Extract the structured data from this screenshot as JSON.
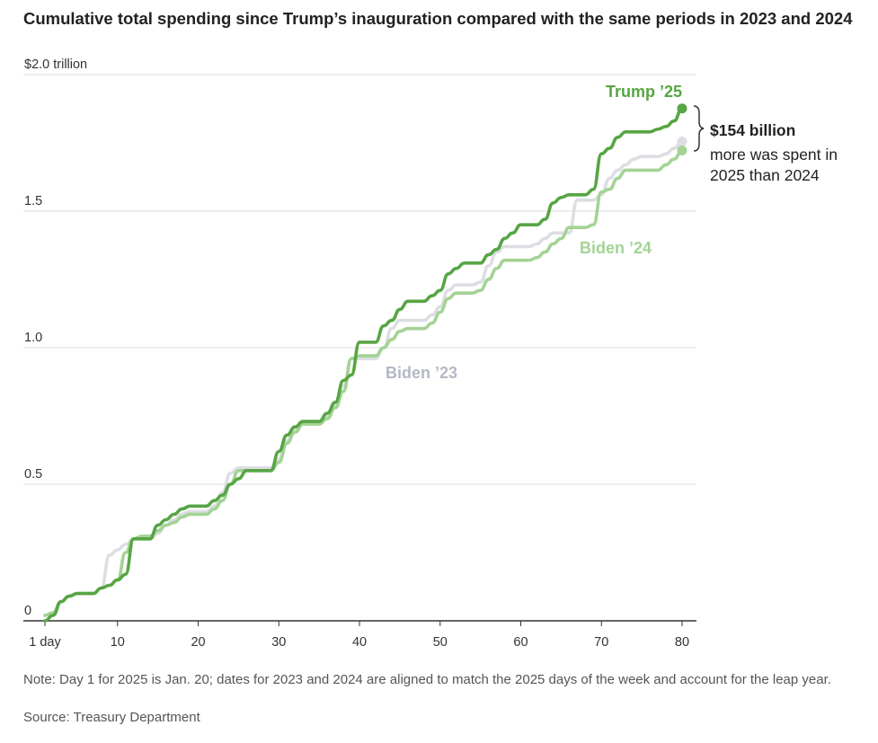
{
  "chart_data": {
    "type": "line",
    "title": "Cumulative total spending since Trump’s inauguration compared with the same periods in 2023 and 2024",
    "xlabel": "",
    "ylabel": "",
    "xlim": [
      1,
      80
    ],
    "ylim": [
      0,
      2.0
    ],
    "x_ticks": [
      1,
      10,
      20,
      30,
      40,
      50,
      60,
      70,
      80
    ],
    "x_tick_labels": [
      "1 day",
      "10",
      "20",
      "30",
      "40",
      "50",
      "60",
      "70",
      "80"
    ],
    "y_ticks": [
      0,
      0.5,
      1.0,
      1.5,
      2.0
    ],
    "y_tick_labels": [
      "0",
      "0.5",
      "1.0",
      "1.5",
      "$2.0 trillion"
    ],
    "grid": true,
    "series": [
      {
        "name": "Biden ’23",
        "color": "#dcdee3",
        "x": [
          1,
          2,
          3,
          4,
          5,
          6,
          7,
          8,
          9,
          10,
          11,
          12,
          13,
          14,
          15,
          16,
          17,
          18,
          19,
          20,
          21,
          22,
          23,
          24,
          25,
          26,
          27,
          28,
          29,
          30,
          31,
          32,
          33,
          34,
          35,
          36,
          37,
          38,
          39,
          40,
          41,
          42,
          43,
          44,
          45,
          46,
          47,
          48,
          49,
          50,
          51,
          52,
          53,
          54,
          55,
          56,
          57,
          58,
          59,
          60,
          61,
          62,
          63,
          64,
          65,
          66,
          67,
          68,
          69,
          70,
          71,
          72,
          73,
          74,
          75,
          76,
          77,
          78,
          79,
          80
        ],
        "values": [
          0.02,
          0.03,
          0.07,
          0.09,
          0.1,
          0.1,
          0.1,
          0.12,
          0.24,
          0.26,
          0.28,
          0.3,
          0.3,
          0.3,
          0.32,
          0.35,
          0.37,
          0.39,
          0.4,
          0.4,
          0.4,
          0.42,
          0.47,
          0.54,
          0.56,
          0.56,
          0.56,
          0.56,
          0.56,
          0.59,
          0.66,
          0.7,
          0.72,
          0.72,
          0.72,
          0.75,
          0.79,
          0.86,
          0.96,
          0.96,
          0.96,
          0.96,
          1.0,
          1.07,
          1.1,
          1.1,
          1.1,
          1.1,
          1.12,
          1.15,
          1.21,
          1.23,
          1.23,
          1.23,
          1.24,
          1.3,
          1.35,
          1.37,
          1.37,
          1.37,
          1.37,
          1.38,
          1.4,
          1.42,
          1.42,
          1.42,
          1.54,
          1.54,
          1.54,
          1.56,
          1.62,
          1.65,
          1.67,
          1.69,
          1.7,
          1.7,
          1.7,
          1.71,
          1.73,
          1.755
        ]
      },
      {
        "name": "Biden ’24",
        "color": "#a3d395",
        "x": [
          1,
          2,
          3,
          4,
          5,
          6,
          7,
          8,
          9,
          10,
          11,
          12,
          13,
          14,
          15,
          16,
          17,
          18,
          19,
          20,
          21,
          22,
          23,
          24,
          25,
          26,
          27,
          28,
          29,
          30,
          31,
          32,
          33,
          34,
          35,
          36,
          37,
          38,
          39,
          40,
          41,
          42,
          43,
          44,
          45,
          46,
          47,
          48,
          49,
          50,
          51,
          52,
          53,
          54,
          55,
          56,
          57,
          58,
          59,
          60,
          61,
          62,
          63,
          64,
          65,
          66,
          67,
          68,
          69,
          70,
          71,
          72,
          73,
          74,
          75,
          76,
          77,
          78,
          79,
          80
        ],
        "values": [
          0.02,
          0.03,
          0.07,
          0.09,
          0.1,
          0.1,
          0.1,
          0.12,
          0.13,
          0.15,
          0.25,
          0.3,
          0.31,
          0.31,
          0.33,
          0.35,
          0.36,
          0.38,
          0.39,
          0.39,
          0.39,
          0.41,
          0.44,
          0.5,
          0.55,
          0.55,
          0.55,
          0.55,
          0.55,
          0.58,
          0.65,
          0.69,
          0.72,
          0.72,
          0.72,
          0.74,
          0.78,
          0.84,
          0.96,
          0.97,
          0.97,
          0.97,
          1.0,
          1.03,
          1.06,
          1.07,
          1.07,
          1.07,
          1.09,
          1.13,
          1.18,
          1.2,
          1.2,
          1.2,
          1.21,
          1.25,
          1.29,
          1.32,
          1.32,
          1.32,
          1.32,
          1.33,
          1.35,
          1.38,
          1.4,
          1.44,
          1.44,
          1.44,
          1.45,
          1.57,
          1.58,
          1.62,
          1.65,
          1.65,
          1.65,
          1.65,
          1.65,
          1.67,
          1.69,
          1.722
        ]
      },
      {
        "name": "Trump ’25",
        "color": "#57a544",
        "x": [
          1,
          2,
          3,
          4,
          5,
          6,
          7,
          8,
          9,
          10,
          11,
          12,
          13,
          14,
          15,
          16,
          17,
          18,
          19,
          20,
          21,
          22,
          23,
          24,
          25,
          26,
          27,
          28,
          29,
          30,
          31,
          32,
          33,
          34,
          35,
          36,
          37,
          38,
          39,
          40,
          41,
          42,
          43,
          44,
          45,
          46,
          47,
          48,
          49,
          50,
          51,
          52,
          53,
          54,
          55,
          56,
          57,
          58,
          59,
          60,
          61,
          62,
          63,
          64,
          65,
          66,
          67,
          68,
          69,
          70,
          71,
          72,
          73,
          74,
          75,
          76,
          77,
          78,
          79,
          80
        ],
        "values": [
          0.0,
          0.02,
          0.07,
          0.09,
          0.1,
          0.1,
          0.1,
          0.12,
          0.13,
          0.15,
          0.17,
          0.3,
          0.3,
          0.3,
          0.35,
          0.37,
          0.39,
          0.41,
          0.42,
          0.42,
          0.42,
          0.44,
          0.46,
          0.5,
          0.52,
          0.55,
          0.55,
          0.55,
          0.55,
          0.62,
          0.68,
          0.71,
          0.73,
          0.73,
          0.73,
          0.76,
          0.8,
          0.88,
          0.9,
          1.02,
          1.02,
          1.02,
          1.08,
          1.1,
          1.14,
          1.17,
          1.17,
          1.17,
          1.19,
          1.21,
          1.27,
          1.29,
          1.31,
          1.31,
          1.31,
          1.34,
          1.36,
          1.4,
          1.42,
          1.45,
          1.45,
          1.45,
          1.47,
          1.53,
          1.55,
          1.56,
          1.56,
          1.56,
          1.58,
          1.71,
          1.73,
          1.77,
          1.79,
          1.79,
          1.79,
          1.79,
          1.8,
          1.81,
          1.83,
          1.876
        ]
      }
    ],
    "annotations": {
      "trump_label": "Trump ’25",
      "biden24_label": "Biden ’24",
      "biden23_label": "Biden ’23",
      "difference_value": "$154 billion",
      "difference_line1": "more was spent in",
      "difference_line2": "2025 than 2024"
    },
    "note": "Note: Day 1 for 2025 is Jan. 20; dates for 2023 and 2024 are aligned to match the 2025 days of the week and account for the leap year.",
    "source": "Source: Treasury Department",
    "colors": {
      "grid": "#dddddd",
      "axis": "#333333",
      "tick_text": "#333333",
      "note_text": "#555555"
    }
  }
}
